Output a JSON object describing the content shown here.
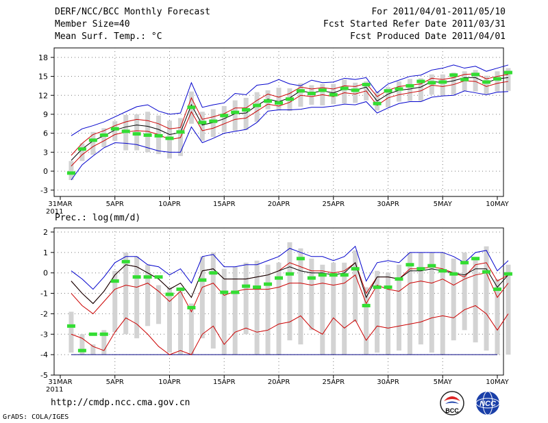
{
  "header": {
    "title": "DERF/NCC/BCC Monthly Forecast",
    "member_size": "Member Size=40",
    "panel1_var": "Mean Surf. Temp.: °C",
    "period": "For 2011/04/01-2011/05/10",
    "started": "Fcst Started Refer Date 2011/03/31",
    "produced": "Fcst Produced Date 2011/04/01"
  },
  "footer": {
    "url": "http://cmdp.ncc.cma.gov.cn",
    "credit": "GrADS: COLA/IGES",
    "logo_left": "BCC",
    "logo_right": "NCC"
  },
  "colors": {
    "mean": "#000000",
    "spread": "#cc0000",
    "extreme": "#0000cc",
    "box": "#d3d3d3",
    "obs": "#33dd33"
  },
  "chart_data": [
    {
      "type": "line",
      "title": "Mean Surf. Temp.: °C",
      "x_tick_labels": [
        "31MAR\n2011",
        "5APR",
        "10APR",
        "15APR",
        "20APR",
        "25APR",
        "30APR",
        "5MAY",
        "10MAY"
      ],
      "x_tick_days": [
        0,
        5,
        10,
        15,
        20,
        25,
        30,
        35,
        40
      ],
      "ylim": [
        -4,
        19.5
      ],
      "yticks": [
        -3,
        0,
        3,
        6,
        9,
        12,
        15,
        18
      ],
      "x_start_day": 1,
      "series": [
        {
          "name": "max",
          "role": "extreme",
          "values": [
            5.6,
            6.7,
            7.2,
            7.8,
            8.6,
            9.4,
            10.2,
            10.5,
            9.5,
            9,
            9.2,
            14,
            10.1,
            10.5,
            10.8,
            12.3,
            12.1,
            13.6,
            13.8,
            14.5,
            13.8,
            13.5,
            14.4,
            14,
            14.1,
            14.7,
            14.5,
            14.8,
            12.4,
            13.8,
            14.4,
            15,
            15.2,
            16,
            16.3,
            16.8,
            16.3,
            16.6,
            15.8,
            16.3,
            16.8
          ]
        },
        {
          "name": "upper",
          "role": "spread",
          "values": [
            2.5,
            4.4,
            5.8,
            6.4,
            7.2,
            7.8,
            8.2,
            8,
            7.5,
            6.7,
            6.9,
            11.6,
            8.2,
            8.6,
            9.1,
            10,
            10,
            11.2,
            12.2,
            11.7,
            12.3,
            13.3,
            13,
            13.2,
            13,
            13.5,
            13.4,
            13.9,
            11.8,
            12.8,
            13.4,
            13.6,
            13.8,
            14.7,
            14.5,
            14.8,
            15.3,
            15.4,
            14.6,
            15,
            15.3
          ]
        },
        {
          "name": "mean",
          "role": "mean",
          "values": [
            1.7,
            3.5,
            4.8,
            5.6,
            6.5,
            7,
            7.3,
            7.1,
            6.6,
            5.8,
            6.1,
            10.5,
            7.3,
            7.7,
            8.3,
            9.1,
            9.2,
            10.4,
            11.4,
            11,
            11.6,
            12.7,
            12.4,
            12.7,
            12.4,
            13,
            12.8,
            13.3,
            11.1,
            12.2,
            12.8,
            13,
            13.3,
            14.2,
            14,
            14.3,
            14.8,
            14.8,
            14,
            14.6,
            14.8
          ]
        },
        {
          "name": "lower",
          "role": "spread",
          "values": [
            0.8,
            2.6,
            3.9,
            4.8,
            5.8,
            6.2,
            6.4,
            6.3,
            5.8,
            5,
            5.3,
            9.4,
            6.4,
            6.8,
            7.5,
            8.2,
            8.4,
            9.5,
            10.6,
            10.3,
            10.9,
            12,
            11.8,
            12.1,
            11.8,
            12.4,
            12.2,
            12.7,
            10.4,
            11.6,
            12.1,
            12.4,
            12.7,
            13.6,
            13.4,
            13.7,
            14.3,
            14.2,
            13.4,
            13.9,
            14.2
          ]
        },
        {
          "name": "min",
          "role": "extreme",
          "values": [
            -1.4,
            1,
            2.4,
            3.7,
            4.5,
            4.4,
            4.2,
            3.7,
            3.2,
            3,
            3,
            7,
            4.5,
            5.2,
            6,
            6.3,
            6.6,
            7.7,
            9.5,
            9.7,
            9.7,
            9.8,
            10.1,
            10.1,
            10.3,
            10.6,
            10.5,
            11,
            9.2,
            10,
            10.7,
            11,
            11,
            11.7,
            11.9,
            12,
            12.7,
            12.4,
            12.1,
            12.5,
            12.6
          ]
        },
        {
          "name": "observed",
          "role": "obs",
          "values": [
            -0.3,
            3.5,
            4.9,
            5.7,
            6.7,
            6.3,
            5.9,
            5.7,
            5.6,
            5.2,
            6.2,
            10.1,
            7.7,
            7.9,
            8.8,
            9.3,
            9.7,
            10.4,
            11.1,
            10.8,
            11.4,
            12.7,
            12.3,
            12.8,
            12.1,
            13.1,
            12.8,
            13.7,
            10.7,
            12.7,
            13,
            13.5,
            14.2,
            14,
            14.1,
            15.2,
            14.5,
            15.3,
            14.1,
            14.6,
            15.6
          ]
        }
      ],
      "box_low": [
        -1.4,
        1.6,
        2.6,
        3.8,
        4.8,
        3.3,
        3.3,
        3,
        2.7,
        2,
        2.4,
        7.5,
        4.8,
        5.4,
        6.2,
        6.4,
        6.5,
        7.8,
        9.8,
        9.6,
        9.5,
        10.2,
        10.5,
        10.4,
        10.6,
        10.7,
        10.8,
        11.2,
        9.6,
        10.1,
        11,
        11.1,
        11.1,
        12.1,
        12,
        12.1,
        12.7,
        12.6,
        12.2,
        12.6,
        12.7
      ],
      "box_high": [
        1.6,
        4.4,
        6.2,
        6.8,
        7.9,
        8.9,
        9,
        9.4,
        8.8,
        8,
        8.4,
        12.6,
        9.4,
        9.8,
        10.3,
        11.2,
        11.6,
        12.5,
        12.8,
        13.2,
        13.1,
        13.9,
        13.6,
        13.8,
        13.8,
        14.5,
        14,
        14.2,
        12.6,
        13.3,
        14.2,
        14.6,
        14.7,
        15.3,
        15.3,
        15.6,
        15.8,
        16,
        15.1,
        15.8,
        16.3
      ]
    },
    {
      "type": "line",
      "title": "Prec.: log(mm/d)",
      "x_tick_labels": [
        "31MAR\n2011",
        "5APR",
        "10APR",
        "15APR",
        "20APR",
        "25APR",
        "30APR",
        "5MAY",
        "10MAY"
      ],
      "x_tick_days": [
        0,
        5,
        10,
        15,
        20,
        25,
        30,
        35,
        40
      ],
      "ylim": [
        -5,
        2.2
      ],
      "yticks": [
        -5,
        -4,
        -3,
        -2,
        -1,
        0,
        1,
        2
      ],
      "x_start_day": 1,
      "baseline": -4,
      "series": [
        {
          "name": "max",
          "role": "extreme",
          "values": [
            0.1,
            -0.3,
            -0.8,
            -0.2,
            0.5,
            0.8,
            0.8,
            0.4,
            0.3,
            -0.1,
            0.2,
            -0.5,
            0.8,
            0.9,
            0.3,
            0.3,
            0.4,
            0.4,
            0.6,
            0.8,
            1.2,
            1,
            0.8,
            0.8,
            0.6,
            0.8,
            1.3,
            -0.4,
            0.5,
            0.6,
            0.5,
            1,
            1,
            1,
            1,
            0.8,
            0.5,
            1,
            1.1,
            0.1,
            0.6
          ]
        },
        {
          "name": "upper",
          "role": "spread",
          "values": [
            -0.4,
            -1,
            -1.5,
            -0.9,
            -0.1,
            0.4,
            0.3,
            0,
            -0.3,
            -0.8,
            -0.5,
            -1.2,
            0.1,
            0.2,
            -0.3,
            -0.3,
            -0.3,
            -0.2,
            -0.1,
            0.1,
            0.5,
            0.3,
            0.1,
            0.1,
            0,
            0.1,
            0.5,
            -1,
            -0.2,
            -0.2,
            -0.3,
            0.2,
            0.2,
            0.3,
            0.2,
            0,
            -0.2,
            0.4,
            0.5,
            -0.4,
            -0.1
          ]
        },
        {
          "name": "mid",
          "role": "spread",
          "values": [
            -1,
            -1.6,
            -2,
            -1.4,
            -0.8,
            -0.6,
            -0.7,
            -0.5,
            -0.9,
            -1.4,
            -0.9,
            -1.9,
            -0.7,
            -0.5,
            -1.1,
            -0.9,
            -0.8,
            -0.8,
            -0.8,
            -0.7,
            -0.5,
            -0.5,
            -0.6,
            -0.5,
            -0.6,
            -0.5,
            -0.1,
            -1.5,
            -0.6,
            -0.8,
            -0.9,
            -0.5,
            -0.4,
            -0.5,
            -0.3,
            -0.6,
            -0.3,
            -0.1,
            0,
            -1.2,
            -0.5
          ]
        },
        {
          "name": "lower",
          "role": "spread",
          "values": [
            -3,
            -3.2,
            -3.6,
            -3.8,
            -2.9,
            -2.2,
            -2.5,
            -3,
            -3.6,
            -4,
            -3.8,
            -4,
            -3,
            -2.6,
            -3.5,
            -2.9,
            -2.7,
            -2.9,
            -2.8,
            -2.5,
            -2.4,
            -2.1,
            -2.7,
            -3,
            -2.2,
            -2.7,
            -2.3,
            -3.3,
            -2.6,
            -2.7,
            -2.6,
            -2.5,
            -2.4,
            -2.2,
            -2.1,
            -2.2,
            -1.8,
            -1.6,
            -2,
            -2.8,
            -2
          ]
        },
        {
          "name": "lowest",
          "role": "spread",
          "values": [
            -4,
            -4,
            -4,
            -4,
            -4,
            -4,
            -4,
            -4,
            -4,
            -4,
            -4,
            -4,
            -4,
            -4,
            -4,
            -4,
            -4,
            -4,
            -4,
            -4,
            -4,
            -4,
            -4,
            -4,
            -4,
            -4,
            -4,
            -4,
            -4,
            -4,
            -4,
            -4,
            -4,
            -4,
            -4,
            -4,
            -4,
            -4,
            -4,
            -4,
            -4
          ]
        },
        {
          "name": "mean",
          "role": "mean",
          "values": [
            -0.4,
            -1,
            -1.5,
            -0.9,
            -0.1,
            0.4,
            0.3,
            0,
            -0.3,
            -0.8,
            -0.5,
            -1.2,
            0.1,
            0.2,
            -0.3,
            -0.3,
            -0.3,
            -0.2,
            -0.1,
            0.1,
            0.3,
            0.1,
            0,
            0,
            -0.1,
            0,
            0.5,
            -1.2,
            -0.2,
            -0.2,
            -0.3,
            0.1,
            0.1,
            0.2,
            0.1,
            0,
            -0.1,
            0.2,
            0.2,
            -0.7,
            -0.1
          ]
        },
        {
          "name": "observed",
          "role": "obs",
          "values": [
            -2.6,
            -3.8,
            -3,
            -3,
            -0.4,
            0.55,
            -0.2,
            -0.2,
            -0.2,
            -1.05,
            -0.8,
            -1.7,
            -0.35,
            0,
            -0.95,
            -0.95,
            -0.65,
            -0.7,
            -0.55,
            -0.25,
            -0.05,
            0.7,
            -0.25,
            -0.1,
            -0.1,
            -0.1,
            0.2,
            -1.6,
            -0.7,
            -0.7,
            -0.3,
            0.4,
            0.2,
            0.35,
            0.1,
            -0.05,
            0.5,
            0.7,
            0.05,
            -0.8,
            -0.05
          ]
        }
      ],
      "box_low": [
        -3.9,
        -4,
        -4,
        -4,
        -2.9,
        -3,
        -3.2,
        -2.6,
        -2.5,
        -3.9,
        -4,
        -4,
        -3.2,
        -3.7,
        -4,
        -4,
        -3,
        -4,
        -4,
        -4,
        -3.3,
        -3.5,
        -2.8,
        -4,
        -4,
        -4,
        -2.4,
        -4,
        -3.9,
        -4,
        -3.8,
        -4,
        -3.5,
        -3.9,
        -4,
        -3.3,
        -2.8,
        -3.4,
        -3.8,
        -4,
        -4
      ],
      "box_high": [
        -1.9,
        -3,
        -3.5,
        -2.8,
        0.1,
        1,
        0.8,
        0.4,
        -0.6,
        -0.7,
        -0.9,
        -1.5,
        0.8,
        1,
        0.2,
        0.3,
        0.5,
        0.6,
        0.4,
        0.5,
        1.5,
        1.2,
        0.7,
        0.4,
        0.5,
        0.5,
        1.1,
        -0.7,
        0.1,
        0,
        0.4,
        1,
        1,
        1,
        1,
        0.7,
        1,
        0.7,
        1.3,
        -0.3,
        0.4
      ]
    }
  ]
}
